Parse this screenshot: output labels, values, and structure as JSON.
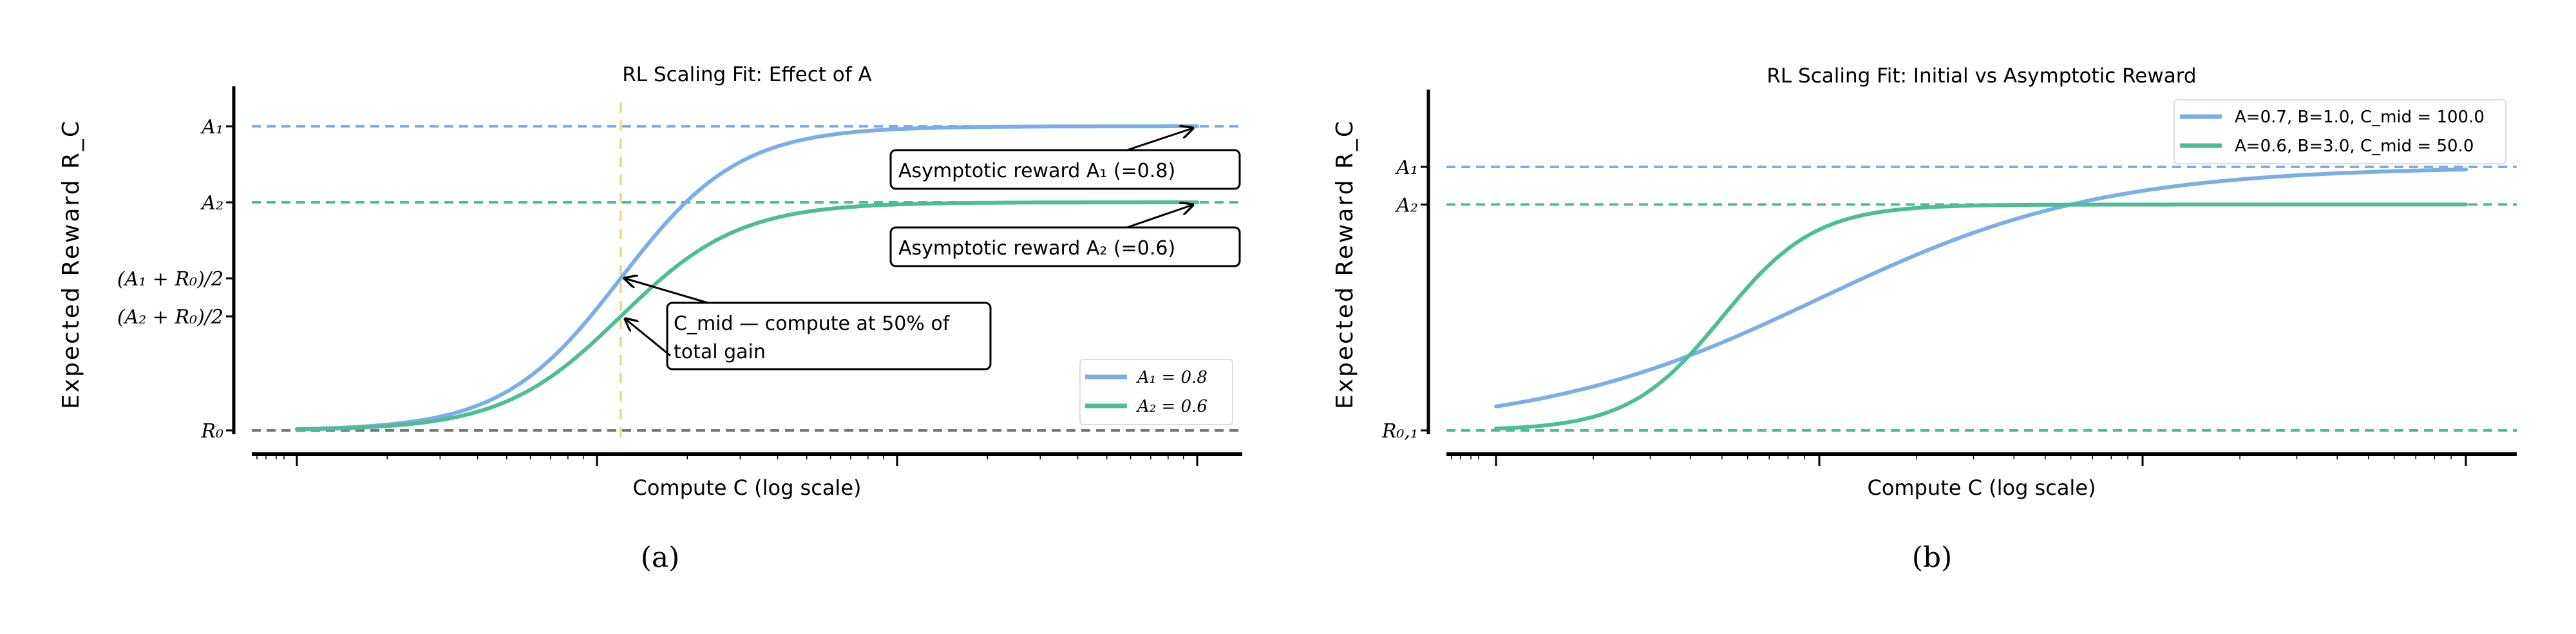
{
  "chart_data": [
    {
      "type": "line",
      "title": "RL Scaling Fit: Effect of A",
      "xlabel": "Compute  C  (log scale)",
      "ylabel": "Expected Reward  R_C",
      "caption": "(a)",
      "x_scale": "log",
      "xlim": [
        10,
        10000
      ],
      "ylim": [
        0,
        0.8
      ],
      "y_tick_labels": [
        "A₁",
        "A₂",
        "(A₁ + R₀)/2",
        "(A₂ + R₀)/2",
        "R₀"
      ],
      "y_tick_values": [
        0.8,
        0.6,
        0.4,
        0.3,
        0.0
      ],
      "R0": 0.0,
      "series": [
        {
          "name": "A₁ = 0.8",
          "A": 0.8,
          "B_estimated": 2.2,
          "C_mid_estimated": 120,
          "color": "#7aaee8"
        },
        {
          "name": "A₂ = 0.6",
          "A": 0.6,
          "B_estimated": 2.2,
          "C_mid_estimated": 120,
          "color": "#4dbd98"
        }
      ],
      "reference_lines": {
        "A1_color": "#7aaee8",
        "A2_color": "#4dbd98",
        "R0_color": "#777777",
        "c_mid_color": "#f0d98a"
      },
      "annotations": [
        {
          "text": "Asymptotic reward A₁ (=0.8)"
        },
        {
          "text": "Asymptotic reward A₂ (=0.6)"
        },
        {
          "text_line1": "C_mid — compute at 50% of",
          "text_line2": "total gain"
        }
      ],
      "legend_placement": "lower-right",
      "grid": false
    },
    {
      "type": "line",
      "title": "RL Scaling Fit: Initial vs Asymptotic Reward",
      "xlabel": "Compute  C  (log scale)",
      "ylabel": "Expected Reward  R_C",
      "caption": "(b)",
      "x_scale": "log",
      "xlim": [
        10,
        10000
      ],
      "ylim": [
        0,
        0.7
      ],
      "y_tick_labels": [
        "A₁",
        "A₂",
        "R₀,₁"
      ],
      "y_tick_values": [
        0.7,
        0.6,
        0.0
      ],
      "R0": 0.0,
      "series": [
        {
          "name": "A=0.7, B=1.0, C_mid = 100.0",
          "A": 0.7,
          "B": 1.0,
          "C_mid": 100.0,
          "color": "#7aaee8"
        },
        {
          "name": "A=0.6, B=3.0, C_mid = 50.0",
          "A": 0.6,
          "B": 3.0,
          "C_mid": 50.0,
          "color": "#4dbd98"
        }
      ],
      "legend_placement": "upper-right",
      "grid": false
    }
  ]
}
